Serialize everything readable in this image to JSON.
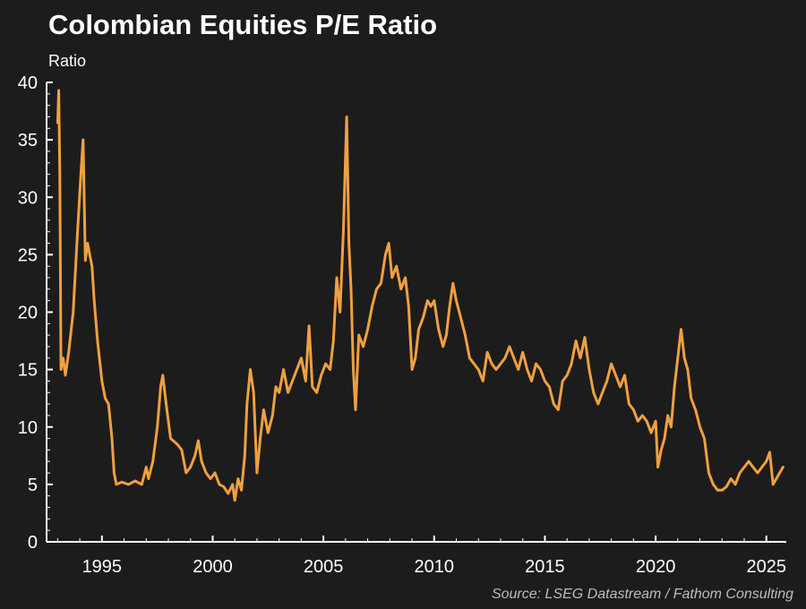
{
  "header": {
    "title": "Colombian Equities P/E Ratio",
    "units": "Ratio"
  },
  "footer": {
    "source": "Source: LSEG Datastream / Fathom Consulting"
  },
  "colors": {
    "background": "#1c1c1c",
    "line": "#f0a040",
    "axis": "#ffffff"
  },
  "chart_data": {
    "type": "line",
    "title": "Colombian Equities P/E Ratio",
    "ylabel": "Ratio",
    "xlabel": "",
    "ylim": [
      0,
      40
    ],
    "xlim": [
      1992.5,
      2025.9
    ],
    "yticks": [
      0,
      5,
      10,
      15,
      20,
      25,
      30,
      35,
      40
    ],
    "xticks": [
      1995,
      2000,
      2005,
      2010,
      2015,
      2020,
      2025
    ],
    "grid": false,
    "series": [
      {
        "name": "Colombian Equities P/E Ratio",
        "points": [
          [
            1993.0,
            36.5
          ],
          [
            1993.05,
            39.3
          ],
          [
            1993.1,
            32.0
          ],
          [
            1993.15,
            15.0
          ],
          [
            1993.25,
            16.0
          ],
          [
            1993.35,
            14.5
          ],
          [
            1993.5,
            16.5
          ],
          [
            1993.7,
            20.0
          ],
          [
            1993.9,
            27.0
          ],
          [
            1994.05,
            32.0
          ],
          [
            1994.15,
            35.0
          ],
          [
            1994.25,
            24.5
          ],
          [
            1994.35,
            26.0
          ],
          [
            1994.45,
            25.0
          ],
          [
            1994.55,
            24.0
          ],
          [
            1994.65,
            21.0
          ],
          [
            1994.8,
            17.5
          ],
          [
            1995.0,
            14.0
          ],
          [
            1995.15,
            12.5
          ],
          [
            1995.3,
            12.0
          ],
          [
            1995.45,
            9.0
          ],
          [
            1995.55,
            6.0
          ],
          [
            1995.65,
            5.0
          ],
          [
            1995.9,
            5.2
          ],
          [
            1996.2,
            5.0
          ],
          [
            1996.5,
            5.3
          ],
          [
            1996.8,
            5.0
          ],
          [
            1997.0,
            6.5
          ],
          [
            1997.1,
            5.5
          ],
          [
            1997.3,
            7.0
          ],
          [
            1997.5,
            10.0
          ],
          [
            1997.65,
            13.5
          ],
          [
            1997.75,
            14.5
          ],
          [
            1997.9,
            12.0
          ],
          [
            1998.1,
            9.0
          ],
          [
            1998.4,
            8.5
          ],
          [
            1998.6,
            8.0
          ],
          [
            1998.8,
            6.0
          ],
          [
            1999.0,
            6.5
          ],
          [
            1999.2,
            7.5
          ],
          [
            1999.35,
            8.8
          ],
          [
            1999.5,
            7.0
          ],
          [
            1999.7,
            6.0
          ],
          [
            1999.9,
            5.5
          ],
          [
            2000.1,
            6.0
          ],
          [
            2000.3,
            5.0
          ],
          [
            2000.5,
            4.8
          ],
          [
            2000.7,
            4.2
          ],
          [
            2000.9,
            5.0
          ],
          [
            2001.0,
            3.6
          ],
          [
            2001.15,
            5.5
          ],
          [
            2001.3,
            4.5
          ],
          [
            2001.45,
            7.5
          ],
          [
            2001.55,
            12.0
          ],
          [
            2001.7,
            15.0
          ],
          [
            2001.85,
            13.0
          ],
          [
            2002.0,
            6.0
          ],
          [
            2002.15,
            9.0
          ],
          [
            2002.3,
            11.5
          ],
          [
            2002.5,
            9.5
          ],
          [
            2002.7,
            11.0
          ],
          [
            2002.85,
            13.5
          ],
          [
            2003.0,
            13.0
          ],
          [
            2003.2,
            15.0
          ],
          [
            2003.4,
            13.0
          ],
          [
            2003.6,
            14.0
          ],
          [
            2003.8,
            15.0
          ],
          [
            2004.0,
            16.0
          ],
          [
            2004.2,
            14.0
          ],
          [
            2004.35,
            18.8
          ],
          [
            2004.5,
            13.5
          ],
          [
            2004.7,
            13.0
          ],
          [
            2004.9,
            14.5
          ],
          [
            2005.1,
            15.5
          ],
          [
            2005.3,
            15.0
          ],
          [
            2005.45,
            17.5
          ],
          [
            2005.6,
            23.0
          ],
          [
            2005.75,
            20.0
          ],
          [
            2005.9,
            27.0
          ],
          [
            2006.05,
            37.0
          ],
          [
            2006.15,
            26.0
          ],
          [
            2006.25,
            22.0
          ],
          [
            2006.35,
            15.0
          ],
          [
            2006.45,
            11.5
          ],
          [
            2006.6,
            18.0
          ],
          [
            2006.8,
            17.0
          ],
          [
            2007.0,
            18.5
          ],
          [
            2007.2,
            20.5
          ],
          [
            2007.4,
            22.0
          ],
          [
            2007.6,
            22.5
          ],
          [
            2007.8,
            25.0
          ],
          [
            2007.95,
            26.0
          ],
          [
            2008.1,
            23.0
          ],
          [
            2008.3,
            24.0
          ],
          [
            2008.5,
            22.0
          ],
          [
            2008.7,
            23.0
          ],
          [
            2008.85,
            20.5
          ],
          [
            2009.0,
            15.0
          ],
          [
            2009.15,
            16.0
          ],
          [
            2009.3,
            18.5
          ],
          [
            2009.5,
            19.5
          ],
          [
            2009.7,
            21.0
          ],
          [
            2009.85,
            20.5
          ],
          [
            2010.0,
            21.0
          ],
          [
            2010.2,
            18.5
          ],
          [
            2010.4,
            17.0
          ],
          [
            2010.55,
            18.0
          ],
          [
            2010.7,
            20.5
          ],
          [
            2010.85,
            22.5
          ],
          [
            2011.0,
            21.0
          ],
          [
            2011.2,
            19.5
          ],
          [
            2011.4,
            18.0
          ],
          [
            2011.6,
            16.0
          ],
          [
            2011.8,
            15.5
          ],
          [
            2012.0,
            15.0
          ],
          [
            2012.2,
            14.0
          ],
          [
            2012.4,
            16.5
          ],
          [
            2012.6,
            15.5
          ],
          [
            2012.8,
            15.0
          ],
          [
            2013.0,
            15.5
          ],
          [
            2013.2,
            16.0
          ],
          [
            2013.4,
            17.0
          ],
          [
            2013.6,
            16.0
          ],
          [
            2013.8,
            15.0
          ],
          [
            2014.0,
            16.5
          ],
          [
            2014.2,
            15.0
          ],
          [
            2014.4,
            14.0
          ],
          [
            2014.6,
            15.5
          ],
          [
            2014.8,
            15.0
          ],
          [
            2015.0,
            14.0
          ],
          [
            2015.2,
            13.5
          ],
          [
            2015.4,
            12.0
          ],
          [
            2015.6,
            11.5
          ],
          [
            2015.8,
            14.0
          ],
          [
            2016.0,
            14.5
          ],
          [
            2016.2,
            15.5
          ],
          [
            2016.4,
            17.5
          ],
          [
            2016.6,
            16.0
          ],
          [
            2016.8,
            17.8
          ],
          [
            2017.0,
            15.0
          ],
          [
            2017.2,
            13.0
          ],
          [
            2017.4,
            12.0
          ],
          [
            2017.6,
            13.0
          ],
          [
            2017.8,
            14.0
          ],
          [
            2018.0,
            15.5
          ],
          [
            2018.2,
            14.5
          ],
          [
            2018.4,
            13.5
          ],
          [
            2018.6,
            14.5
          ],
          [
            2018.8,
            12.0
          ],
          [
            2019.0,
            11.5
          ],
          [
            2019.2,
            10.5
          ],
          [
            2019.4,
            11.0
          ],
          [
            2019.6,
            10.5
          ],
          [
            2019.8,
            9.5
          ],
          [
            2020.0,
            10.5
          ],
          [
            2020.1,
            6.5
          ],
          [
            2020.25,
            8.0
          ],
          [
            2020.4,
            9.0
          ],
          [
            2020.55,
            11.0
          ],
          [
            2020.7,
            10.0
          ],
          [
            2020.85,
            13.5
          ],
          [
            2021.0,
            16.0
          ],
          [
            2021.15,
            18.5
          ],
          [
            2021.3,
            16.0
          ],
          [
            2021.45,
            15.0
          ],
          [
            2021.6,
            12.5
          ],
          [
            2021.8,
            11.5
          ],
          [
            2022.0,
            10.0
          ],
          [
            2022.2,
            9.0
          ],
          [
            2022.4,
            6.0
          ],
          [
            2022.6,
            5.0
          ],
          [
            2022.8,
            4.5
          ],
          [
            2023.0,
            4.5
          ],
          [
            2023.2,
            4.8
          ],
          [
            2023.4,
            5.5
          ],
          [
            2023.6,
            5.0
          ],
          [
            2023.8,
            6.0
          ],
          [
            2024.0,
            6.5
          ],
          [
            2024.2,
            7.0
          ],
          [
            2024.4,
            6.5
          ],
          [
            2024.6,
            6.0
          ],
          [
            2024.8,
            6.5
          ],
          [
            2025.0,
            7.0
          ],
          [
            2025.15,
            7.8
          ],
          [
            2025.3,
            5.0
          ],
          [
            2025.45,
            5.5
          ],
          [
            2025.6,
            6.0
          ],
          [
            2025.75,
            6.5
          ]
        ]
      }
    ]
  }
}
